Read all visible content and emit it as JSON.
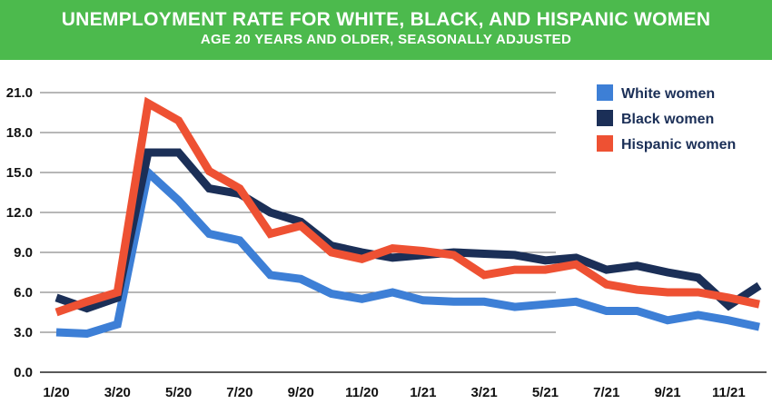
{
  "chart_data": {
    "type": "line",
    "title": "UNEMPLOYMENT RATE FOR WHITE, BLACK, AND HISPANIC WOMEN",
    "subtitle": "AGE 20 YEARS AND OLDER, SEASONALLY ADJUSTED",
    "x_tick_labels": [
      "1/20",
      "3/20",
      "5/20",
      "7/20",
      "9/20",
      "11/20",
      "1/21",
      "3/21",
      "5/21",
      "7/21",
      "9/21",
      "11/21"
    ],
    "y_tick_labels": [
      "0.0",
      "3.0",
      "6.0",
      "9.0",
      "12.0",
      "15.0",
      "18.0",
      "21.0"
    ],
    "ylim": [
      0,
      21
    ],
    "grid": "horizontal",
    "legend_position": "top-right",
    "x": [
      "1/20",
      "2/20",
      "3/20",
      "4/20",
      "5/20",
      "6/20",
      "7/20",
      "8/20",
      "9/20",
      "10/20",
      "11/20",
      "12/20",
      "1/21",
      "2/21",
      "3/21",
      "4/21",
      "5/21",
      "6/21",
      "7/21",
      "8/21",
      "9/21",
      "10/21",
      "11/21",
      "12/21"
    ],
    "series": [
      {
        "name": "White women",
        "color": "#3d7fd6",
        "values": [
          3.0,
          2.9,
          3.6,
          15.0,
          12.9,
          10.4,
          9.9,
          7.3,
          7.0,
          5.9,
          5.5,
          6.0,
          5.4,
          5.3,
          5.3,
          4.9,
          5.1,
          5.3,
          4.6,
          4.6,
          3.9,
          4.3,
          3.9,
          3.4
        ]
      },
      {
        "name": "Black women",
        "color": "#1b2f57",
        "values": [
          5.6,
          4.8,
          5.6,
          16.5,
          16.5,
          13.8,
          13.4,
          12.0,
          11.3,
          9.5,
          9.0,
          8.6,
          8.8,
          9.0,
          8.9,
          8.8,
          8.4,
          8.6,
          7.7,
          8.0,
          7.5,
          7.1,
          5.0,
          6.5
        ]
      },
      {
        "name": "Hispanic women",
        "color": "#ee5133",
        "values": [
          4.5,
          5.3,
          6.0,
          20.2,
          18.9,
          15.1,
          13.8,
          10.4,
          11.0,
          9.0,
          8.5,
          9.3,
          9.1,
          8.8,
          7.3,
          7.7,
          7.7,
          8.1,
          6.6,
          6.2,
          6.0,
          6.0,
          5.6,
          5.1
        ]
      }
    ]
  }
}
